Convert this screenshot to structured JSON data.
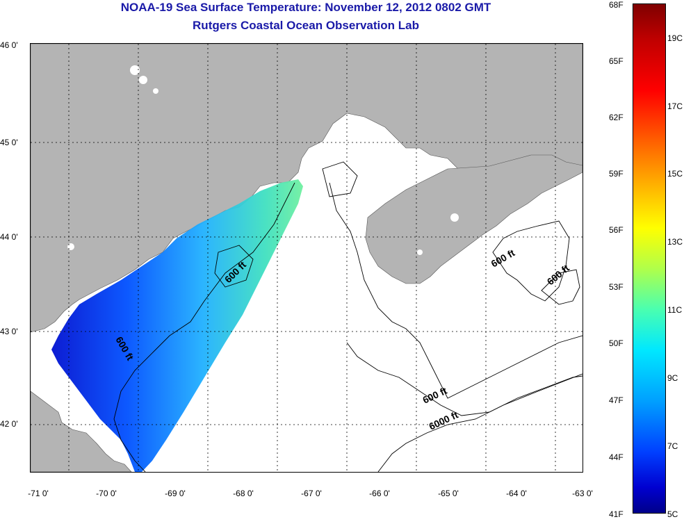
{
  "title": {
    "line1": "NOAA-19 Sea Surface Temperature:  November 12, 2012 0802 GMT",
    "line2": "Rutgers Coastal Ocean Observation Lab"
  },
  "x_ticks": [
    "-71 0'",
    "-70 0'",
    "-69 0'",
    "-68 0'",
    "-67 0'",
    "-66 0'",
    "-65 0'",
    "-64 0'",
    "-63 0'"
  ],
  "y_ticks": [
    "46 0'",
    "45 0'",
    "44 0'",
    "43 0'",
    "42 0'"
  ],
  "contour_labels": [
    "600 ft",
    "600 ft",
    "600 ft",
    "600 ft",
    "6000 ft",
    "600 ft"
  ],
  "colorbar": {
    "fahrenheit": [
      "68F",
      "65F",
      "62F",
      "59F",
      "56F",
      "53F",
      "50F",
      "47F",
      "44F",
      "41F"
    ],
    "celsius": [
      "19C",
      "17C",
      "15C",
      "13C",
      "11C",
      "9C",
      "7C",
      "5C"
    ]
  },
  "colors": {
    "land": "#b4b4b4",
    "title": "#1a1aa8",
    "warm": "#7f0000",
    "cold": "#00008a"
  }
}
